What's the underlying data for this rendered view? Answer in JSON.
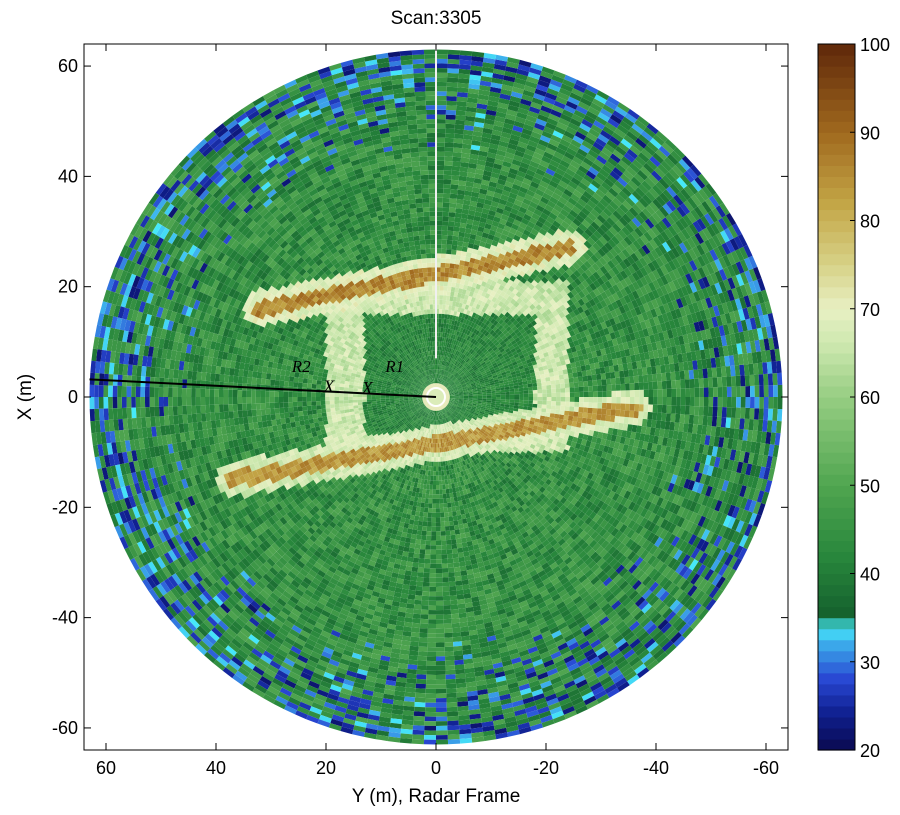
{
  "chart_data": {
    "type": "heatmap",
    "title": "Scan:3305",
    "xlabel": "Y (m), Radar Frame",
    "ylabel": "X (m)",
    "xlim": [
      64,
      -64
    ],
    "ylim": [
      -64,
      64
    ],
    "xticks": [
      60,
      40,
      20,
      0,
      -20,
      -40,
      -60
    ],
    "yticks": [
      60,
      40,
      20,
      0,
      -20,
      -40,
      -60
    ],
    "colorbar": {
      "range": [
        20,
        100
      ],
      "ticks": [
        100,
        90,
        80,
        70,
        60,
        50,
        40,
        30,
        20
      ]
    },
    "scan_radius_m": 63,
    "range_line": {
      "from": [
        0,
        0
      ],
      "to": [
        63,
        3.2
      ]
    },
    "annotations": [
      {
        "text": "R2",
        "x": 24.5,
        "y": 4.5
      },
      {
        "text": "R1",
        "x": 7.5,
        "y": 4.5
      },
      {
        "text": "X",
        "x": 19.5,
        "y": 0.8
      },
      {
        "text": "X",
        "x": 12.5,
        "y": 0.5
      }
    ],
    "features": [
      {
        "kind": "wall",
        "from": [
          32,
          16
        ],
        "to": [
          -24,
          27
        ],
        "value": 72,
        "core": 90
      },
      {
        "kind": "wall",
        "from": [
          37,
          -15
        ],
        "to": [
          -36,
          -2
        ],
        "value": 70,
        "core": 88
      },
      {
        "kind": "ring_region",
        "y0": 20,
        "y1": -24,
        "x0": -10,
        "x1": 21,
        "value": 66
      },
      {
        "kind": "inner_region",
        "y0": 13,
        "y1": -18,
        "x0": -7,
        "x1": 15,
        "value": 42
      }
    ]
  }
}
